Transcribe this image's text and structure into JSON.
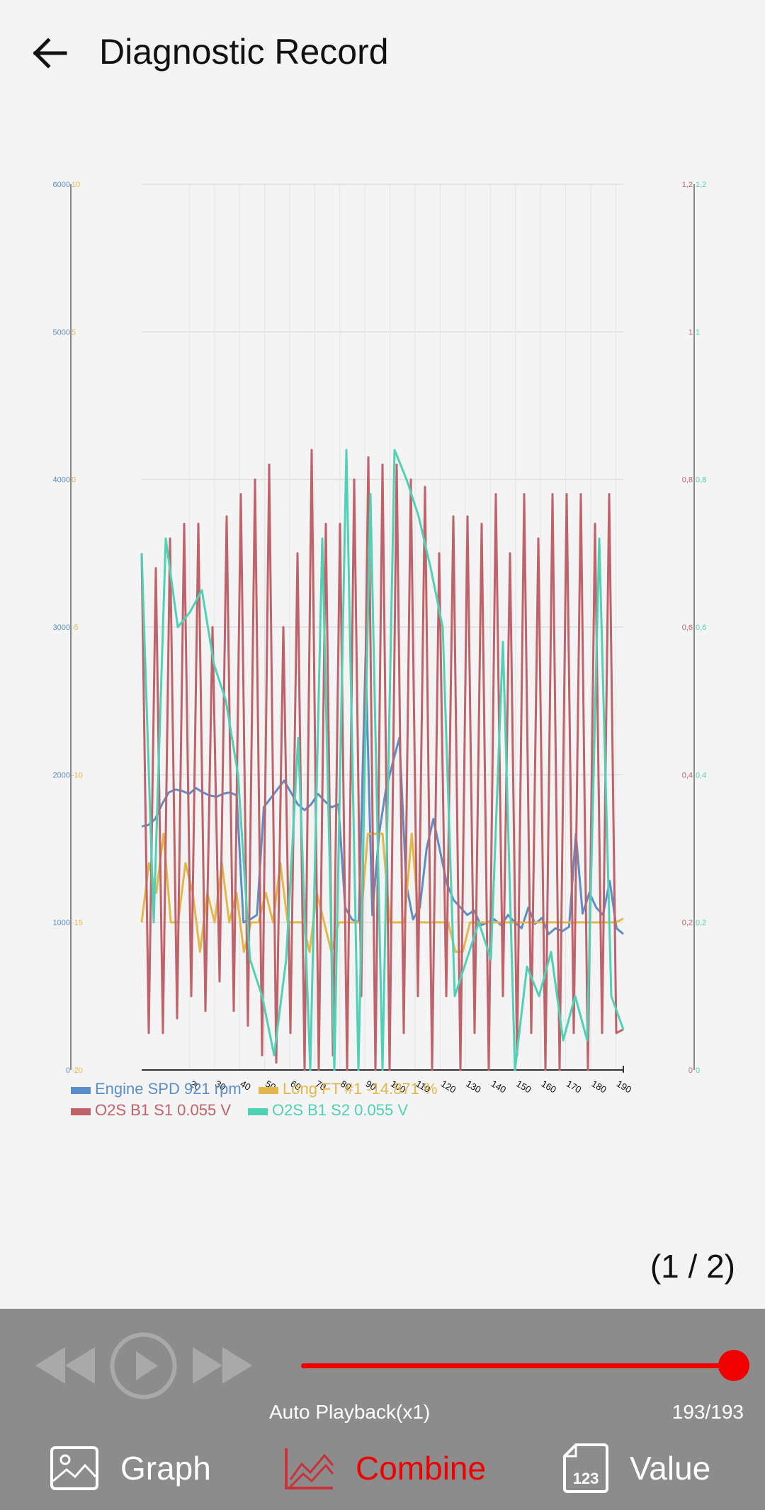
{
  "header": {
    "title": "Diagnostic Record",
    "back_icon": "arrow-left-icon"
  },
  "page_indicator": "(1 / 2)",
  "controls": {
    "rewind_icon": "rewind-icon",
    "play_icon": "play-icon",
    "forward_icon": "fast-forward-icon",
    "playback_label": "Auto Playback(x1)",
    "counter": "193/193",
    "slider_value": 1.0,
    "accent": "#f00000"
  },
  "tabs": [
    {
      "label": "Graph",
      "icon": "image-icon",
      "active": false
    },
    {
      "label": "Combine",
      "icon": "line-chart-icon",
      "active": true
    },
    {
      "label": "Value",
      "icon": "number-file-icon",
      "active": false
    }
  ],
  "chart_data": {
    "type": "line",
    "title": "",
    "x_ticks": [
      "20",
      "30",
      "40",
      "50",
      "60",
      "70",
      "80",
      "90",
      "100",
      "110",
      "120",
      "130",
      "140",
      "150",
      "160",
      "170",
      "180",
      "190"
    ],
    "x_range": [
      1,
      193
    ],
    "left_axis_1": {
      "color": "#5b8ec9",
      "ticks": [
        "0",
        "1000",
        "2000",
        "3000",
        "4000",
        "5000",
        "6000"
      ],
      "range": [
        0,
        6000
      ]
    },
    "left_axis_2": {
      "color": "#e2b84a",
      "ticks": [
        "-20",
        "-15",
        "-10",
        "-5",
        "0",
        "5",
        "10"
      ],
      "range": [
        -20,
        10
      ]
    },
    "right_axis_1": {
      "color": "#c0626a",
      "ticks": [
        "0",
        "0,2",
        "0,4",
        "0,6",
        "0,8",
        "1",
        "1,2"
      ],
      "range": [
        0,
        1.2
      ]
    },
    "right_axis_2": {
      "color": "#4fd1b5",
      "ticks": [
        "0",
        "0,2",
        "0,4",
        "0,6",
        "0,8",
        "1",
        "1,2"
      ],
      "range": [
        0,
        1.2
      ]
    },
    "legend": [
      {
        "label": "Engine SPD 921 rpm",
        "color": "#5b8ec9"
      },
      {
        "label": "Long FT #1 -14.871 %",
        "color": "#e2b84a"
      },
      {
        "label": "O2S B1 S1 0.055 V",
        "color": "#c0626a"
      },
      {
        "label": "O2S B1 S2 0.055 V",
        "color": "#4fd1b5"
      }
    ],
    "series": [
      {
        "name": "Engine SPD 921 rpm",
        "axis": "left_axis_1",
        "values": [
          1650,
          1660,
          1700,
          1800,
          1880,
          1900,
          1890,
          1870,
          1910,
          1880,
          1860,
          1850,
          1870,
          1880,
          1860,
          1000,
          1020,
          1050,
          1780,
          1840,
          1900,
          1960,
          1880,
          1800,
          1760,
          1800,
          1870,
          1820,
          1780,
          1800,
          1100,
          1020,
          1000,
          2800,
          1050,
          1600,
          1900,
          2080,
          2250,
          1260,
          1020,
          1100,
          1500,
          1700,
          1480,
          1260,
          1150,
          1100,
          1050,
          1080,
          980,
          1000,
          1020,
          980,
          1050,
          1000,
          960,
          1100,
          990,
          1030,
          920,
          960,
          940,
          970,
          1600,
          1060,
          1200,
          1100,
          1050,
          1280,
          960,
          921
        ]
      },
      {
        "name": "Long FT #1 -14.871 %",
        "axis": "left_axis_2",
        "values": [
          -15,
          -13,
          -14,
          -12,
          -15,
          -15,
          -13,
          -14,
          -16,
          -14,
          -15,
          -13,
          -15,
          -14,
          -16,
          -15,
          -15,
          -14,
          -15,
          -13,
          -15,
          -15,
          -15,
          -16,
          -14,
          -15,
          -16,
          -15,
          -15,
          -15,
          -15,
          -12,
          -12,
          -12,
          -15,
          -15,
          -15,
          -12,
          -15,
          -15,
          -15,
          -15,
          -15,
          -16,
          -16,
          -15,
          -15,
          -15,
          -15,
          -15,
          -15,
          -15,
          -15,
          -15,
          -15,
          -15,
          -15,
          -15,
          -15,
          -15,
          -15,
          -15,
          -15,
          -15,
          -15,
          -15,
          -14.871
        ]
      },
      {
        "name": "O2S B1 S1 0.055 V",
        "axis": "right_axis_1",
        "values": [
          0.7,
          0.05,
          0.68,
          0.05,
          0.72,
          0.07,
          0.74,
          0.1,
          0.74,
          0.08,
          0.6,
          0.12,
          0.75,
          0.08,
          0.78,
          0.06,
          0.8,
          0.02,
          0.82,
          0.01,
          0.6,
          0.05,
          0.7,
          0.0,
          0.84,
          0.0,
          0.74,
          0.02,
          0.74,
          0.0,
          0.8,
          0.1,
          0.83,
          0.0,
          0.82,
          0.0,
          0.82,
          0.05,
          0.8,
          0.1,
          0.79,
          0.0,
          0.7,
          0.1,
          0.75,
          0.0,
          0.75,
          0.05,
          0.74,
          0.0,
          0.78,
          0.1,
          0.7,
          0.02,
          0.78,
          0.05,
          0.72,
          0.0,
          0.78,
          0.0,
          0.78,
          0.05,
          0.78,
          0.0,
          0.74,
          0.05,
          0.78,
          0.05,
          0.055
        ]
      },
      {
        "name": "O2S B1 S2 0.055 V",
        "axis": "right_axis_2",
        "values": [
          0.7,
          0.2,
          0.72,
          0.6,
          0.62,
          0.65,
          0.55,
          0.5,
          0.4,
          0.15,
          0.1,
          0.02,
          0.15,
          0.45,
          0.0,
          0.72,
          0.0,
          0.84,
          0.0,
          0.78,
          0.0,
          0.84,
          0.8,
          0.75,
          0.68,
          0.6,
          0.1,
          0.15,
          0.2,
          0.15,
          0.58,
          0.0,
          0.14,
          0.1,
          0.16,
          0.04,
          0.1,
          0.04,
          0.72,
          0.1,
          0.055
        ]
      }
    ]
  }
}
